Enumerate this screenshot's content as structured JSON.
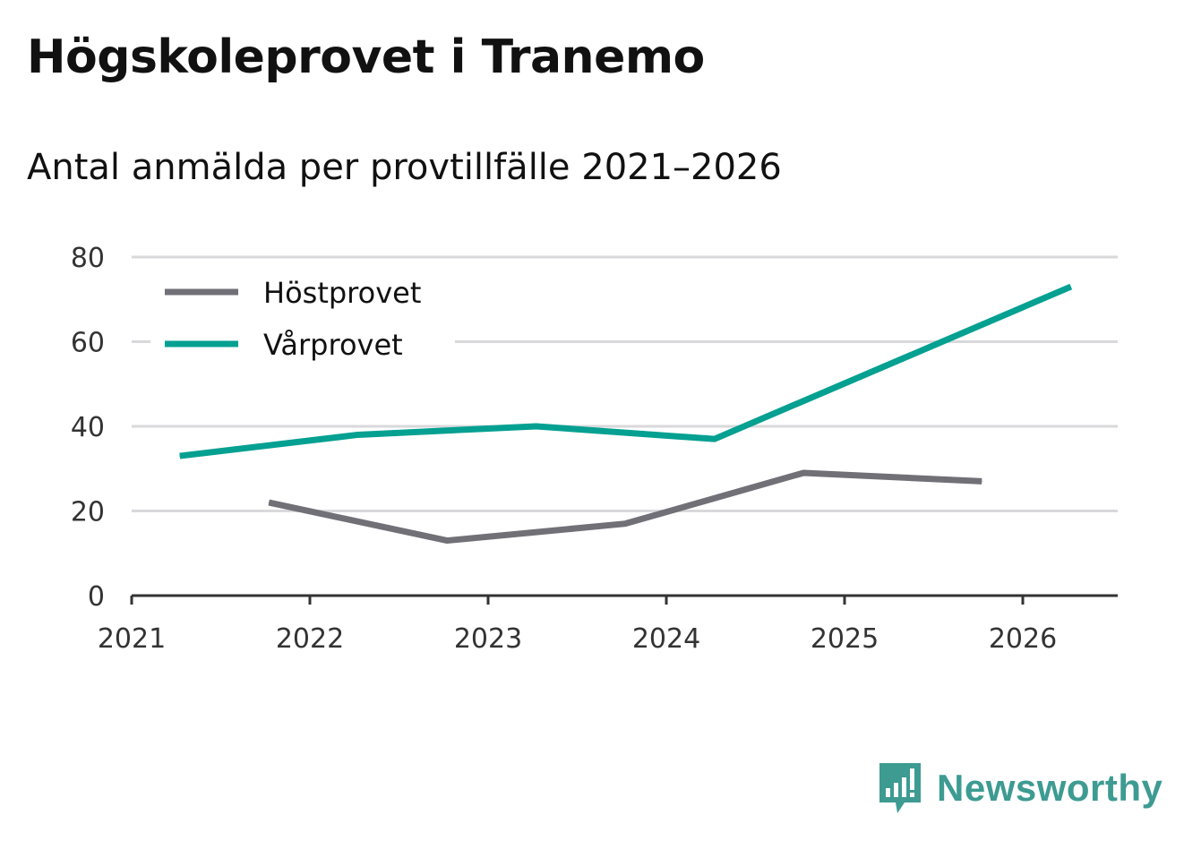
{
  "header": {
    "title": "Högskoleprovet i Tranemo",
    "subtitle": "Antal anmälda per provtillfälle 2021–2026"
  },
  "brand": {
    "name": "Newsworthy",
    "color": "#3d9b92",
    "icon": "newsworthy-logo-icon"
  },
  "chart_data": {
    "type": "line",
    "title": "Högskoleprovet i Tranemo",
    "subtitle": "Antal anmälda per provtillfälle 2021–2026",
    "xlabel": "",
    "ylabel": "",
    "xlim": [
      2021,
      2026.55
    ],
    "ylim": [
      0,
      80
    ],
    "x_ticks": [
      "2021",
      "2022",
      "2023",
      "2024",
      "2025",
      "2026"
    ],
    "y_ticks": [
      "0",
      "20",
      "40",
      "60",
      "80"
    ],
    "grid": true,
    "legend": "top-left",
    "series": [
      {
        "name": "Höstprovet",
        "color": "#717077",
        "x": [
          2021.77,
          2022.77,
          2023.77,
          2024.77,
          2025.77
        ],
        "values": [
          22,
          13,
          17,
          29,
          27
        ]
      },
      {
        "name": "Vårprovet",
        "color": "#04a091",
        "x": [
          2021.27,
          2022.27,
          2023.27,
          2024.27,
          2025.27,
          2026.27
        ],
        "values": [
          33,
          38,
          40,
          37,
          55,
          73
        ]
      }
    ]
  }
}
